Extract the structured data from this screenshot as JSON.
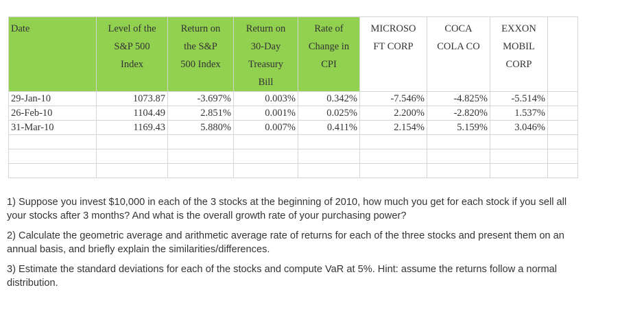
{
  "table": {
    "headers": [
      [
        "Date"
      ],
      [
        "Level of the",
        "S&P 500",
        "Index"
      ],
      [
        "Return on",
        "the S&P",
        "500 Index"
      ],
      [
        "Return on",
        "30-Day",
        "Treasury",
        "Bill"
      ],
      [
        "Rate of",
        "Change in",
        "CPI"
      ],
      [
        "MICROSO",
        "FT CORP"
      ],
      [
        "COCA",
        "COLA CO"
      ],
      [
        "EXXON",
        "MOBIL",
        "CORP"
      ]
    ],
    "rows": [
      [
        "29-Jan-10",
        "1073.87",
        "-3.697%",
        "0.003%",
        "0.342%",
        "-7.546%",
        "-4.825%",
        "-5.514%"
      ],
      [
        "26-Feb-10",
        "1104.49",
        "2.851%",
        "0.001%",
        "0.025%",
        "2.200%",
        "-2.820%",
        "1.537%"
      ],
      [
        "31-Mar-10",
        "1169.43",
        "5.880%",
        "0.007%",
        "0.411%",
        "2.154%",
        "5.159%",
        "3.046%"
      ]
    ],
    "header_color": "#92d050"
  },
  "questions": [
    "1) Suppose you invest $10,000 in each of the 3 stocks at the beginning of 2010, how much you get for each stock if you sell all your stocks after 3 months? And what is the overall growth rate of your purchasing power?",
    "2) Calculate the geometric average and arithmetic average rate of returns for each of the three stocks and present them on an annual basis, and briefly explain the similarities/differences.",
    "3) Estimate the standard deviations for each of the stocks and compute VaR at 5%. Hint: assume the returns follow a normal distribution."
  ]
}
